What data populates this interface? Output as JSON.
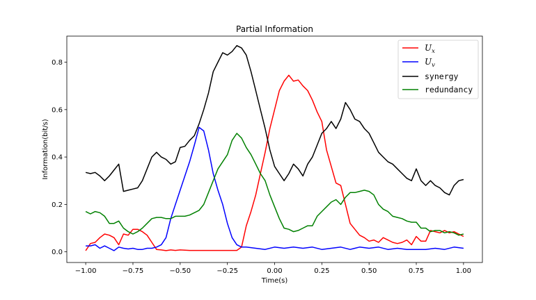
{
  "chart_data": {
    "type": "line",
    "title": "Partial Information",
    "xlabel": "Time(s)",
    "ylabel": "Information(bit/s)",
    "xlim": [
      -1.1,
      1.1
    ],
    "ylim": [
      -0.045,
      0.91
    ],
    "xticks": [
      -1.0,
      -0.75,
      -0.5,
      -0.25,
      0.0,
      0.25,
      0.5,
      0.75,
      1.0
    ],
    "xtick_labels": [
      "−1.00",
      "−0.75",
      "−0.50",
      "−0.25",
      "0.00",
      "0.25",
      "0.50",
      "0.75",
      "1.00"
    ],
    "yticks": [
      0.0,
      0.2,
      0.4,
      0.6,
      0.8
    ],
    "ytick_labels": [
      "0.0",
      "0.2",
      "0.4",
      "0.6",
      "0.8"
    ],
    "grid": false,
    "legend_position": "top-right",
    "series": [
      {
        "name": "U",
        "subscript": "x",
        "color": "#ff0000",
        "x": [
          -1.0,
          -0.975,
          -0.95,
          -0.925,
          -0.9,
          -0.875,
          -0.85,
          -0.825,
          -0.8,
          -0.775,
          -0.75,
          -0.725,
          -0.7,
          -0.675,
          -0.65,
          -0.625,
          -0.6,
          -0.575,
          -0.55,
          -0.525,
          -0.5,
          -0.45,
          -0.4,
          -0.35,
          -0.3,
          -0.25,
          -0.2,
          -0.175,
          -0.15,
          -0.125,
          -0.1,
          -0.075,
          -0.05,
          -0.025,
          0.0,
          0.025,
          0.05,
          0.075,
          0.1,
          0.125,
          0.15,
          0.175,
          0.2,
          0.225,
          0.25,
          0.275,
          0.3,
          0.325,
          0.35,
          0.375,
          0.4,
          0.425,
          0.45,
          0.475,
          0.5,
          0.525,
          0.55,
          0.575,
          0.6,
          0.625,
          0.65,
          0.675,
          0.7,
          0.725,
          0.75,
          0.775,
          0.8,
          0.825,
          0.85,
          0.875,
          0.9,
          0.925,
          0.95,
          0.975,
          1.0
        ],
        "values": [
          0.005,
          0.035,
          0.04,
          0.06,
          0.075,
          0.07,
          0.06,
          0.03,
          0.075,
          0.07,
          0.095,
          0.095,
          0.085,
          0.07,
          0.04,
          0.01,
          0.008,
          0.005,
          0.008,
          0.006,
          0.008,
          0.006,
          0.006,
          0.006,
          0.006,
          0.006,
          0.006,
          0.02,
          0.11,
          0.17,
          0.24,
          0.33,
          0.42,
          0.52,
          0.6,
          0.68,
          0.72,
          0.745,
          0.72,
          0.725,
          0.7,
          0.68,
          0.64,
          0.59,
          0.55,
          0.43,
          0.36,
          0.29,
          0.28,
          0.2,
          0.12,
          0.095,
          0.07,
          0.06,
          0.045,
          0.05,
          0.04,
          0.06,
          0.05,
          0.04,
          0.035,
          0.04,
          0.05,
          0.03,
          0.065,
          0.045,
          0.045,
          0.09,
          0.085,
          0.08,
          0.09,
          0.08,
          0.085,
          0.075,
          0.065
        ]
      },
      {
        "name": "U",
        "subscript": "v",
        "color": "#0000ff",
        "x": [
          -1.0,
          -0.975,
          -0.95,
          -0.925,
          -0.9,
          -0.875,
          -0.85,
          -0.825,
          -0.8,
          -0.775,
          -0.75,
          -0.725,
          -0.7,
          -0.675,
          -0.65,
          -0.625,
          -0.6,
          -0.575,
          -0.55,
          -0.525,
          -0.5,
          -0.475,
          -0.45,
          -0.425,
          -0.4,
          -0.375,
          -0.35,
          -0.325,
          -0.3,
          -0.275,
          -0.25,
          -0.225,
          -0.2,
          -0.175,
          -0.15,
          -0.1,
          -0.05,
          0.0,
          0.05,
          0.1,
          0.15,
          0.2,
          0.25,
          0.3,
          0.35,
          0.4,
          0.45,
          0.5,
          0.55,
          0.6,
          0.65,
          0.7,
          0.75,
          0.8,
          0.85,
          0.9,
          0.95,
          1.0
        ],
        "values": [
          0.025,
          0.025,
          0.03,
          0.015,
          0.025,
          0.015,
          0.005,
          0.02,
          0.015,
          0.012,
          0.015,
          0.01,
          0.01,
          0.015,
          0.015,
          0.02,
          0.03,
          0.06,
          0.14,
          0.2,
          0.26,
          0.32,
          0.38,
          0.45,
          0.525,
          0.51,
          0.43,
          0.33,
          0.26,
          0.2,
          0.12,
          0.06,
          0.03,
          0.02,
          0.02,
          0.015,
          0.01,
          0.02,
          0.015,
          0.02,
          0.015,
          0.02,
          0.01,
          0.015,
          0.02,
          0.01,
          0.02,
          0.015,
          0.02,
          0.01,
          0.015,
          0.01,
          0.01,
          0.01,
          0.015,
          0.01,
          0.02,
          0.015
        ]
      },
      {
        "name": "synergy",
        "color": "#000000",
        "x": [
          -1.0,
          -0.975,
          -0.95,
          -0.925,
          -0.9,
          -0.875,
          -0.85,
          -0.825,
          -0.8,
          -0.775,
          -0.75,
          -0.725,
          -0.7,
          -0.675,
          -0.65,
          -0.625,
          -0.6,
          -0.575,
          -0.55,
          -0.525,
          -0.5,
          -0.475,
          -0.45,
          -0.425,
          -0.4,
          -0.375,
          -0.35,
          -0.325,
          -0.3,
          -0.275,
          -0.25,
          -0.225,
          -0.2,
          -0.175,
          -0.15,
          -0.125,
          -0.1,
          -0.075,
          -0.05,
          -0.025,
          0.0,
          0.025,
          0.05,
          0.075,
          0.1,
          0.125,
          0.15,
          0.175,
          0.2,
          0.225,
          0.25,
          0.275,
          0.3,
          0.325,
          0.35,
          0.375,
          0.4,
          0.425,
          0.45,
          0.475,
          0.5,
          0.525,
          0.55,
          0.575,
          0.6,
          0.625,
          0.65,
          0.675,
          0.7,
          0.725,
          0.75,
          0.775,
          0.8,
          0.825,
          0.85,
          0.875,
          0.9,
          0.925,
          0.95,
          0.975,
          1.0
        ],
        "values": [
          0.335,
          0.33,
          0.335,
          0.32,
          0.3,
          0.32,
          0.345,
          0.37,
          0.255,
          0.26,
          0.265,
          0.27,
          0.3,
          0.35,
          0.4,
          0.42,
          0.4,
          0.39,
          0.37,
          0.38,
          0.44,
          0.445,
          0.47,
          0.49,
          0.54,
          0.6,
          0.67,
          0.76,
          0.8,
          0.84,
          0.83,
          0.845,
          0.87,
          0.86,
          0.83,
          0.76,
          0.68,
          0.6,
          0.52,
          0.43,
          0.36,
          0.33,
          0.3,
          0.33,
          0.37,
          0.35,
          0.32,
          0.37,
          0.4,
          0.45,
          0.5,
          0.52,
          0.55,
          0.52,
          0.56,
          0.63,
          0.6,
          0.56,
          0.55,
          0.52,
          0.5,
          0.46,
          0.42,
          0.4,
          0.38,
          0.37,
          0.35,
          0.33,
          0.31,
          0.3,
          0.35,
          0.3,
          0.28,
          0.3,
          0.28,
          0.27,
          0.25,
          0.24,
          0.28,
          0.3,
          0.305
        ]
      },
      {
        "name": "redundancy",
        "color": "#008000",
        "x": [
          -1.0,
          -0.975,
          -0.95,
          -0.925,
          -0.9,
          -0.875,
          -0.85,
          -0.825,
          -0.8,
          -0.775,
          -0.75,
          -0.725,
          -0.7,
          -0.675,
          -0.65,
          -0.625,
          -0.6,
          -0.575,
          -0.55,
          -0.525,
          -0.5,
          -0.475,
          -0.45,
          -0.425,
          -0.4,
          -0.375,
          -0.35,
          -0.325,
          -0.3,
          -0.275,
          -0.25,
          -0.225,
          -0.2,
          -0.175,
          -0.15,
          -0.125,
          -0.1,
          -0.075,
          -0.05,
          -0.025,
          0.0,
          0.025,
          0.05,
          0.075,
          0.1,
          0.125,
          0.15,
          0.175,
          0.2,
          0.225,
          0.25,
          0.275,
          0.3,
          0.325,
          0.35,
          0.375,
          0.4,
          0.425,
          0.45,
          0.475,
          0.5,
          0.525,
          0.55,
          0.575,
          0.6,
          0.625,
          0.65,
          0.675,
          0.7,
          0.725,
          0.75,
          0.775,
          0.8,
          0.825,
          0.85,
          0.875,
          0.9,
          0.925,
          0.95,
          0.975,
          1.0
        ],
        "values": [
          0.17,
          0.16,
          0.17,
          0.165,
          0.15,
          0.12,
          0.12,
          0.13,
          0.1,
          0.085,
          0.075,
          0.085,
          0.1,
          0.12,
          0.14,
          0.145,
          0.145,
          0.14,
          0.14,
          0.15,
          0.15,
          0.15,
          0.155,
          0.165,
          0.175,
          0.2,
          0.25,
          0.3,
          0.35,
          0.38,
          0.41,
          0.47,
          0.5,
          0.48,
          0.44,
          0.41,
          0.37,
          0.33,
          0.3,
          0.24,
          0.19,
          0.14,
          0.1,
          0.095,
          0.085,
          0.09,
          0.1,
          0.11,
          0.11,
          0.15,
          0.17,
          0.19,
          0.21,
          0.22,
          0.2,
          0.23,
          0.25,
          0.25,
          0.255,
          0.26,
          0.255,
          0.24,
          0.2,
          0.18,
          0.17,
          0.15,
          0.145,
          0.14,
          0.13,
          0.125,
          0.125,
          0.1,
          0.1,
          0.085,
          0.09,
          0.09,
          0.08,
          0.085,
          0.08,
          0.07,
          0.075
        ]
      }
    ]
  }
}
